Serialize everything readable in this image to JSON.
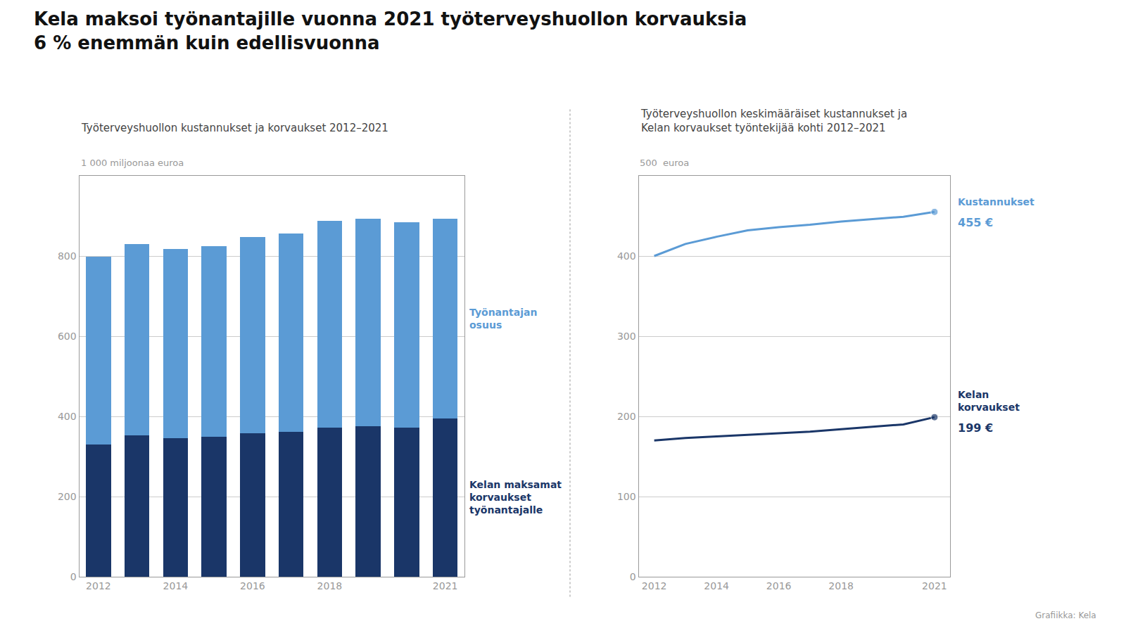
{
  "title": "Kela maksoi työnantajille vuonna 2021 työterveyshuollon korvauksia\n6 % enemmän kuin edellisvuonna",
  "annotations": [
    {
      "text": "Grafiikka: Kela"
    }
  ],
  "chart_data": [
    {
      "type": "bar",
      "stacked": true,
      "subtitle": "Työterveyshuollon kustannukset ja korvaukset 2012–2021",
      "ylabel": "1 000 miljoonaa euroa",
      "categories": [
        "2012",
        null,
        "2014",
        null,
        "2016",
        null,
        "2018",
        null,
        null,
        "2021"
      ],
      "series": [
        {
          "name": "Kelan maksamat\nkorvaukset\ntyönantajalle",
          "color": "#1a3668",
          "values": [
            330,
            352,
            345,
            350,
            358,
            362,
            372,
            375,
            372,
            395
          ]
        },
        {
          "name": "Työnantajan\nosuus",
          "color": "#5b9bd5",
          "values": [
            468,
            478,
            472,
            474,
            490,
            495,
            515,
            518,
            513,
            498
          ]
        }
      ],
      "ylim": [
        0,
        1000
      ],
      "yticks": [
        0,
        200,
        400,
        600,
        800
      ],
      "grid": true
    },
    {
      "type": "line",
      "subtitle": "Työterveyshuollon keskimääräiset kustannukset ja\nKelan korvaukset työntekijää kohti 2012–2021",
      "ylabel": "500  euroa",
      "x": [
        2012,
        2013,
        2014,
        2015,
        2016,
        2017,
        2018,
        2019,
        2020,
        2021
      ],
      "series": [
        {
          "name": "Kustannukset",
          "color": "#5b9bd5",
          "values": [
            400,
            415,
            424,
            432,
            436,
            439,
            443,
            446,
            449,
            455
          ],
          "value_labels": [
            null,
            null,
            null,
            null,
            null,
            null,
            null,
            null,
            null,
            "455 €"
          ]
        },
        {
          "name": "Kelan\nkorvaukset",
          "color": "#1a3668",
          "values": [
            170,
            173,
            175,
            177,
            179,
            181,
            184,
            187,
            190,
            199
          ],
          "value_labels": [
            null,
            null,
            null,
            null,
            null,
            null,
            null,
            null,
            null,
            "199 €"
          ]
        }
      ],
      "xlim": [
        2011.5,
        2021.5
      ],
      "xticks": [
        2012,
        2014,
        2016,
        2018,
        2021
      ],
      "ylim": [
        0,
        500
      ],
      "yticks": [
        0,
        100,
        200,
        300,
        400
      ],
      "grid": true
    }
  ]
}
